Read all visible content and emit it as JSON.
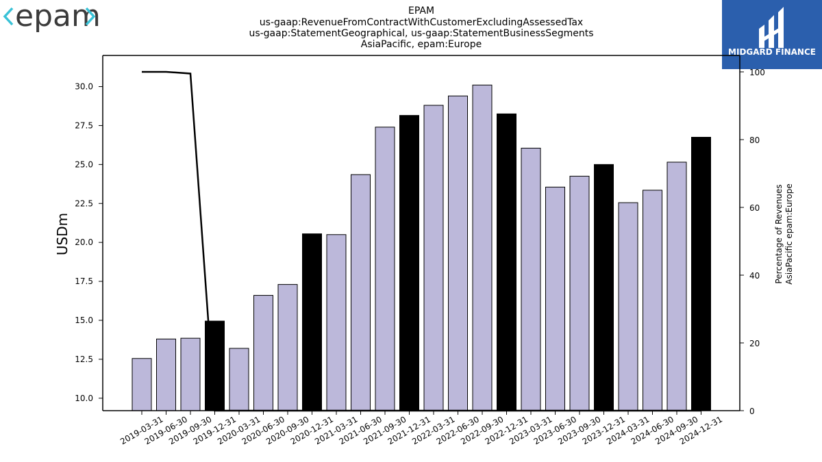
{
  "logos": {
    "left_text": "epam",
    "left_brackets_color": "#39c2d7",
    "right_text": "MIDGARD FINANCE",
    "right_bg": "#2b5fad"
  },
  "chart_data": {
    "type": "bar",
    "title_lines": [
      "EPAM",
      "us-gaap:RevenueFromContractWithCustomerExcludingAssessedTax",
      "us-gaap:StatementGeographical, us-gaap:StatementBusinessSegments",
      "AsiaPacific, epam:Europe"
    ],
    "ylabel": "USDm",
    "y2label_lines": [
      "Percentage of Revenues",
      "AsiaPacific epam:Europe"
    ],
    "ylim": [
      9.2,
      32.0
    ],
    "y2lim": [
      0,
      100
    ],
    "yticks": [
      "10.0",
      "12.5",
      "15.0",
      "17.5",
      "20.0",
      "22.5",
      "25.0",
      "27.5",
      "30.0"
    ],
    "y2ticks": [
      "0",
      "20",
      "40",
      "60",
      "80",
      "100"
    ],
    "categories": [
      "2019-03-31",
      "2019-06-30",
      "2019-09-30",
      "2019-12-31",
      "2020-03-31",
      "2020-06-30",
      "2020-09-30",
      "2020-12-31",
      "2021-03-31",
      "2021-06-30",
      "2021-09-30",
      "2021-12-31",
      "2022-03-31",
      "2022-06-30",
      "2022-09-30",
      "2022-12-31",
      "2023-03-31",
      "2023-06-30",
      "2023-09-30",
      "2023-12-31",
      "2024-03-31",
      "2024-06-30",
      "2024-09-30",
      "2024-12-31"
    ],
    "values": [
      12.55,
      13.8,
      13.85,
      14.95,
      13.2,
      16.6,
      17.3,
      20.55,
      20.5,
      24.35,
      27.4,
      28.15,
      28.8,
      29.4,
      30.1,
      28.25,
      26.05,
      23.55,
      24.25,
      25.0,
      22.55,
      23.35,
      25.15,
      26.75
    ],
    "highlight": [
      false,
      false,
      false,
      true,
      false,
      false,
      false,
      true,
      false,
      false,
      false,
      true,
      false,
      false,
      false,
      true,
      false,
      false,
      false,
      true,
      false,
      false,
      false,
      true
    ],
    "bar_color": "#bcb8da",
    "highlight_color": "#000000",
    "line_series": {
      "axis": "right",
      "values": [
        100,
        100,
        99.5,
        0,
        0,
        0,
        0,
        0,
        0,
        0,
        0,
        0,
        0,
        0,
        0,
        0,
        0,
        0,
        0,
        0,
        0,
        0,
        0,
        0
      ],
      "color": "#000000"
    }
  }
}
